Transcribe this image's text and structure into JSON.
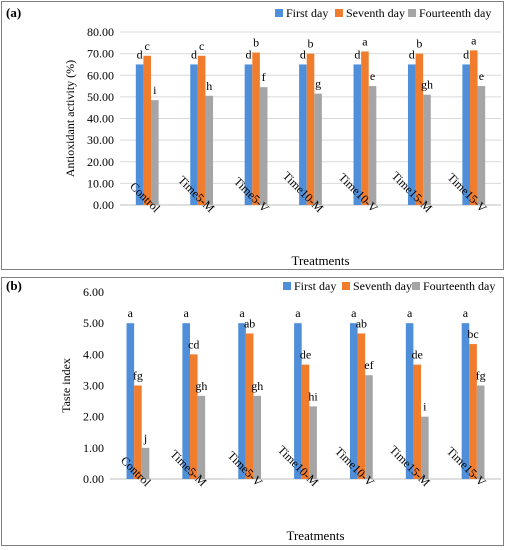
{
  "colors": {
    "first": "#4f8fd9",
    "seventh": "#f07c2e",
    "fourteenth": "#a5a5a5",
    "grid": "#d9d9d9",
    "axis": "#bfbfbf",
    "border": "#7f7f7f"
  },
  "chart_data": [
    {
      "type": "bar",
      "panel_label": "(a)",
      "ylabel": "Antioxidant activity (%)",
      "xlabel": "Treatments",
      "ylim": [
        0,
        80
      ],
      "ytick_step": 10,
      "ytick_decimals": 2,
      "grid": true,
      "legend_position": "top",
      "categories": [
        "Control",
        "Time5-M",
        "Time5-V",
        "Time10-M",
        "Time10-V",
        "Time15-M",
        "Time15-V"
      ],
      "series": [
        {
          "name": "First day",
          "color_key": "first",
          "values": [
            65,
            65,
            65,
            65,
            65,
            65,
            65
          ],
          "letters": [
            "d",
            "d",
            "d",
            "d",
            "d",
            "d",
            "d"
          ]
        },
        {
          "name": "Seventh day",
          "color_key": "seventh",
          "values": [
            69,
            69,
            70.5,
            70,
            71,
            70,
            71.5
          ],
          "letters": [
            "c",
            "c",
            "b",
            "b",
            "a",
            "b",
            "a"
          ]
        },
        {
          "name": "Fourteenth day",
          "color_key": "fourteenth",
          "values": [
            48.5,
            50.5,
            54.5,
            51.5,
            55,
            51,
            55
          ],
          "letters": [
            "i",
            "h",
            "f",
            "g",
            "e",
            "gh",
            "e"
          ]
        }
      ]
    },
    {
      "type": "bar",
      "panel_label": "(b)",
      "ylabel": "Taste index",
      "xlabel": "Treatments",
      "ylim": [
        0,
        6
      ],
      "ytick_step": 1,
      "ytick_decimals": 2,
      "grid": false,
      "legend_position": "top",
      "categories": [
        "Control",
        "Time5-M",
        "Time5-V",
        "Time10-M",
        "Time10-V",
        "Time15-M",
        "Time15-V"
      ],
      "series": [
        {
          "name": "First day",
          "color_key": "first",
          "values": [
            5,
            5,
            5,
            5,
            5,
            5,
            5
          ],
          "letters": [
            "a",
            "a",
            "a",
            "a",
            "a",
            "a",
            "a"
          ]
        },
        {
          "name": "Seventh day",
          "color_key": "seventh",
          "values": [
            3,
            4,
            4.67,
            3.67,
            4.67,
            3.67,
            4.33
          ],
          "letters": [
            "fg",
            "cd",
            "ab",
            "de",
            "ab",
            "de",
            "bc"
          ]
        },
        {
          "name": "Fourteenth day",
          "color_key": "fourteenth",
          "values": [
            1,
            2.67,
            2.67,
            2.33,
            3.33,
            2,
            3
          ],
          "letters": [
            "j",
            "gh",
            "gh",
            "hi",
            "ef",
            "i",
            "fg"
          ]
        }
      ]
    }
  ]
}
